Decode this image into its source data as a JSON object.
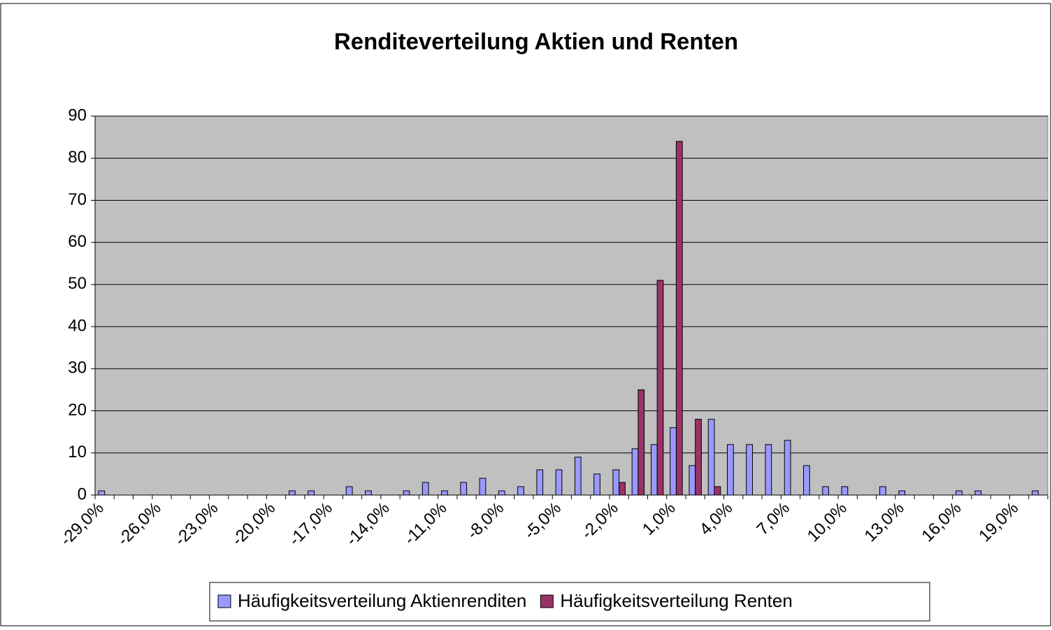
{
  "chart_data": {
    "type": "bar",
    "title": "Renditeverteilung Aktien und Renten",
    "categories": [
      "-29,0%",
      null,
      null,
      "-26,0%",
      null,
      null,
      "-23,0%",
      null,
      null,
      "-20,0%",
      null,
      null,
      "-17,0%",
      null,
      null,
      "-14,0%",
      null,
      null,
      "-11,0%",
      null,
      null,
      "-8,0%",
      null,
      null,
      "-5,0%",
      null,
      null,
      "-2,0%",
      null,
      null,
      "1,0%",
      null,
      null,
      "4,0%",
      null,
      null,
      "7,0%",
      null,
      null,
      "10,0%",
      null,
      null,
      "13,0%",
      null,
      null,
      "16,0%",
      null,
      null,
      "19,0%",
      null
    ],
    "series": [
      {
        "name": "Häufigkeitsverteilung Aktienrenditen",
        "color": "#9999ff",
        "values": [
          1,
          0,
          0,
          0,
          0,
          0,
          0,
          0,
          0,
          0,
          1,
          1,
          0,
          2,
          1,
          0,
          1,
          3,
          1,
          3,
          4,
          1,
          2,
          6,
          6,
          9,
          5,
          6,
          11,
          12,
          16,
          7,
          18,
          12,
          12,
          12,
          13,
          7,
          2,
          2,
          0,
          2,
          1,
          0,
          0,
          1,
          1,
          0,
          0,
          1
        ]
      },
      {
        "name": "Häufigkeitsverteilung Renten",
        "color": "#993366",
        "values": [
          0,
          0,
          0,
          0,
          0,
          0,
          0,
          0,
          0,
          0,
          0,
          0,
          0,
          0,
          0,
          0,
          0,
          0,
          0,
          0,
          0,
          0,
          0,
          0,
          0,
          0,
          0,
          3,
          25,
          51,
          84,
          18,
          2,
          0,
          0,
          0,
          0,
          0,
          0,
          0,
          0,
          0,
          0,
          0,
          0,
          0,
          0,
          0,
          0,
          0
        ]
      }
    ],
    "ylim": [
      0,
      90
    ],
    "yticks": [
      0,
      10,
      20,
      30,
      40,
      50,
      60,
      70,
      80,
      90
    ],
    "grid": true,
    "legend": "bottom"
  }
}
